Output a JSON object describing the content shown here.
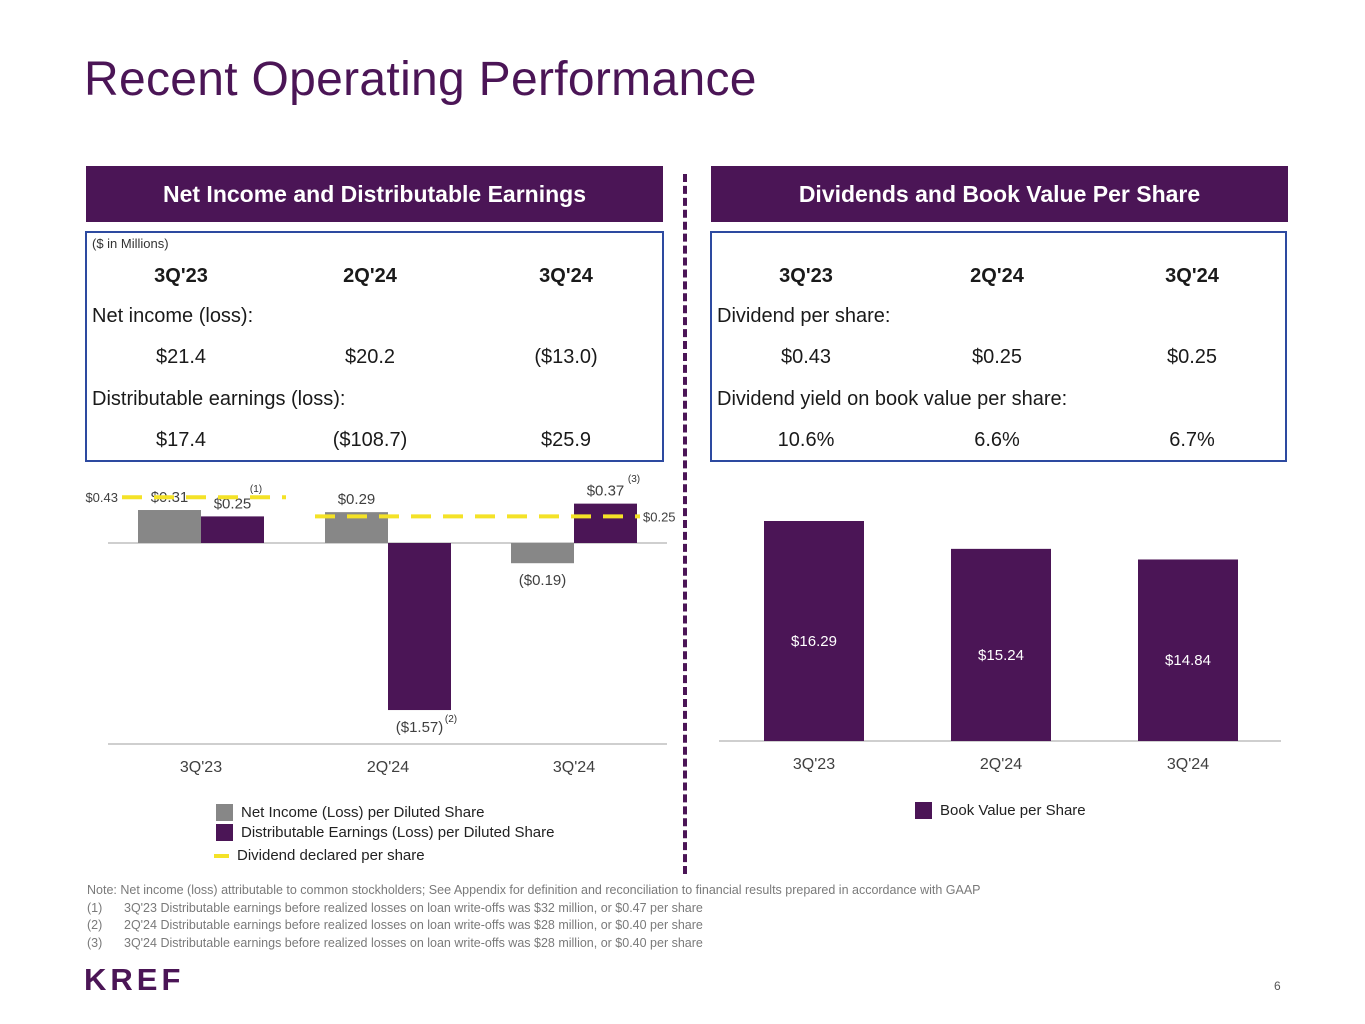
{
  "title": "Recent Operating Performance",
  "left_panel": {
    "header": "Net Income and Distributable Earnings",
    "unit_note": "($ in Millions)",
    "columns": [
      "3Q'23",
      "2Q'24",
      "3Q'24"
    ],
    "rows": [
      {
        "label": "Net income (loss):",
        "values": [
          "$21.4",
          "$20.2",
          "($13.0)"
        ]
      },
      {
        "label": "Distributable earnings (loss):",
        "values": [
          "$17.4",
          "($108.7)",
          "$25.9"
        ]
      }
    ]
  },
  "right_panel": {
    "header": "Dividends and Book Value Per Share",
    "columns": [
      "3Q'23",
      "2Q'24",
      "3Q'24"
    ],
    "rows": [
      {
        "label": "Dividend per share:",
        "values": [
          "$0.43",
          "$0.25",
          "$0.25"
        ]
      },
      {
        "label": "Dividend yield on book value per share:",
        "values": [
          "10.6%",
          "6.6%",
          "6.7%"
        ]
      }
    ]
  },
  "chart_data": [
    {
      "type": "bar",
      "categories": [
        "3Q'23",
        "2Q'24",
        "3Q'24"
      ],
      "series": [
        {
          "name": "Net Income (Loss) per Diluted Share",
          "color": "#878787",
          "values": [
            0.31,
            0.29,
            -0.19
          ],
          "labels": [
            "$0.31",
            "$0.29",
            "($0.19)"
          ]
        },
        {
          "name": "Distributable Earnings (Loss) per Diluted Share",
          "color": "#4b1556",
          "values": [
            0.25,
            -1.57,
            0.37
          ],
          "labels": [
            "$0.25",
            "($1.57)",
            "$0.37"
          ]
        }
      ],
      "lines": [
        {
          "name": "Dividend declared per share",
          "color": "#f4e227",
          "segments": [
            {
              "from": "3Q'23",
              "to": "3Q'23",
              "value": 0.43,
              "label": "$0.43"
            },
            {
              "from": "2Q'24",
              "to": "3Q'24",
              "value": 0.25,
              "label": "$0.25"
            }
          ]
        }
      ],
      "footnote_marks": [
        "(1)",
        "(2)",
        "(3)"
      ],
      "ylim": [
        -1.9,
        0.43
      ]
    },
    {
      "type": "bar",
      "categories": [
        "3Q'23",
        "2Q'24",
        "3Q'24"
      ],
      "series": [
        {
          "name": "Book Value per Share",
          "color": "#4b1556",
          "values": [
            16.29,
            15.24,
            14.84
          ],
          "labels": [
            "$16.29",
            "$15.24",
            "$14.84"
          ]
        }
      ],
      "ylim": [
        8.0,
        16.29
      ]
    }
  ],
  "notes": {
    "main": "Note: Net income (loss) attributable to common stockholders; See Appendix for definition and reconciliation to financial results prepared in accordance with GAAP",
    "items": [
      {
        "num": "(1)",
        "text": "3Q'23 Distributable earnings before realized losses on loan write-offs was $32 million, or $0.47 per share"
      },
      {
        "num": "(2)",
        "text": "2Q'24 Distributable earnings before realized losses on loan write-offs was $28 million, or $0.40 per share"
      },
      {
        "num": "(3)",
        "text": "3Q'24 Distributable earnings before realized losses on loan write-offs was $28 million, or $0.40 per share"
      }
    ]
  },
  "logo": "KREF",
  "page_number": "6"
}
